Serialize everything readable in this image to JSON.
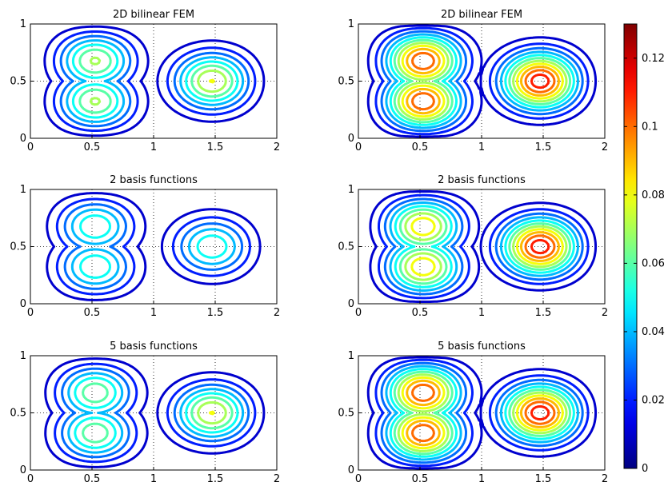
{
  "chart_data": [
    {
      "type": "contour",
      "title": "2D bilinear FEM",
      "xlim": [
        0,
        2
      ],
      "ylim": [
        0,
        1
      ],
      "xticks": [
        "0",
        "0.5",
        "1",
        "1.5",
        "2"
      ],
      "yticks": [
        "0",
        "0.5",
        "1"
      ],
      "grid": "dotted",
      "centers": [
        {
          "x": 0.5,
          "y": 0.7,
          "peak": 0.085
        },
        {
          "x": 0.5,
          "y": 0.3,
          "peak": 0.085
        },
        {
          "x": 1.5,
          "y": 0.5,
          "peak": 0.09
        }
      ],
      "levels": [
        0.01,
        0.02,
        0.03,
        0.04,
        0.05,
        0.06,
        0.07,
        0.08
      ]
    },
    {
      "type": "contour",
      "title": "2D bilinear FEM",
      "xlim": [
        0,
        2
      ],
      "ylim": [
        0,
        1
      ],
      "xticks": [
        "0",
        "0.5",
        "1",
        "1.5",
        "2"
      ],
      "yticks": [
        "0",
        "0.5",
        "1"
      ],
      "grid": "dotted",
      "centers": [
        {
          "x": 0.5,
          "y": 0.7,
          "peak": 0.13
        },
        {
          "x": 0.5,
          "y": 0.3,
          "peak": 0.13
        },
        {
          "x": 1.5,
          "y": 0.5,
          "peak": 0.13
        }
      ],
      "levels": [
        0.01,
        0.02,
        0.03,
        0.04,
        0.05,
        0.06,
        0.07,
        0.08,
        0.09,
        0.1,
        0.11,
        0.12
      ]
    },
    {
      "type": "contour",
      "title": "2 basis functions",
      "xlim": [
        0,
        2
      ],
      "ylim": [
        0,
        1
      ],
      "xticks": [
        "0",
        "0.5",
        "1",
        "1.5",
        "2"
      ],
      "yticks": [
        "0",
        "0.5",
        "1"
      ],
      "grid": "dotted",
      "centers": [
        {
          "x": 0.5,
          "y": 0.7,
          "peak": 0.07
        },
        {
          "x": 0.5,
          "y": 0.3,
          "peak": 0.07
        },
        {
          "x": 1.5,
          "y": 0.5,
          "peak": 0.065
        }
      ],
      "levels": [
        0.01,
        0.02,
        0.03,
        0.04,
        0.05,
        0.06
      ]
    },
    {
      "type": "contour",
      "title": "2 basis functions",
      "xlim": [
        0,
        2
      ],
      "ylim": [
        0,
        1
      ],
      "xticks": [
        "0",
        "0.5",
        "1",
        "1.5",
        "2"
      ],
      "yticks": [
        "0",
        "0.5",
        "1"
      ],
      "grid": "dotted",
      "centers": [
        {
          "x": 0.5,
          "y": 0.7,
          "peak": 0.105
        },
        {
          "x": 0.5,
          "y": 0.3,
          "peak": 0.105
        },
        {
          "x": 1.5,
          "y": 0.5,
          "peak": 0.13
        }
      ],
      "levels": [
        0.01,
        0.02,
        0.03,
        0.04,
        0.05,
        0.06,
        0.07,
        0.08,
        0.09,
        0.1,
        0.11,
        0.12
      ]
    },
    {
      "type": "contour",
      "title": "5 basis functions",
      "xlim": [
        0,
        2
      ],
      "ylim": [
        0,
        1
      ],
      "xticks": [
        "0",
        "0.5",
        "1",
        "1.5",
        "2"
      ],
      "yticks": [
        "0",
        "0.5",
        "1"
      ],
      "grid": "dotted",
      "centers": [
        {
          "x": 0.5,
          "y": 0.7,
          "peak": 0.08
        },
        {
          "x": 0.5,
          "y": 0.3,
          "peak": 0.08
        },
        {
          "x": 1.5,
          "y": 0.5,
          "peak": 0.09
        }
      ],
      "levels": [
        0.01,
        0.02,
        0.03,
        0.04,
        0.05,
        0.06,
        0.07,
        0.08
      ]
    },
    {
      "type": "contour",
      "title": "5 basis functions",
      "xlim": [
        0,
        2
      ],
      "ylim": [
        0,
        1
      ],
      "xticks": [
        "0",
        "0.5",
        "1",
        "1.5",
        "2"
      ],
      "yticks": [
        "0",
        "0.5",
        "1"
      ],
      "grid": "dotted",
      "centers": [
        {
          "x": 0.5,
          "y": 0.7,
          "peak": 0.13
        },
        {
          "x": 0.5,
          "y": 0.3,
          "peak": 0.13
        },
        {
          "x": 1.5,
          "y": 0.5,
          "peak": 0.13
        }
      ],
      "levels": [
        0.01,
        0.02,
        0.03,
        0.04,
        0.05,
        0.06,
        0.07,
        0.08,
        0.09,
        0.1,
        0.11,
        0.12
      ]
    }
  ],
  "colorbar": {
    "colormap": "jet",
    "range": [
      0,
      0.13
    ],
    "ticks": [
      "0",
      "0.02",
      "0.04",
      "0.06",
      "0.08",
      "0.1",
      "0.12"
    ],
    "tick_values": [
      0,
      0.02,
      0.04,
      0.06,
      0.08,
      0.1,
      0.12
    ]
  }
}
